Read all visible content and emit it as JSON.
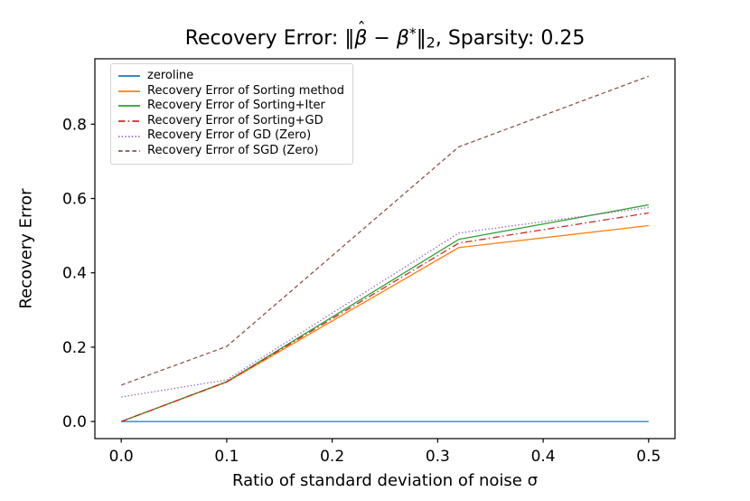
{
  "title_parts": {
    "prefix": "Recovery Error: ",
    "norm_open": "‖",
    "beta": "β",
    "hat": "ˆ",
    "minus": " − ",
    "beta2": "β",
    "star": "*",
    "norm_close": "‖",
    "subscript": "2",
    "suffix": ", Sparsity: 0.25"
  },
  "chart_data": {
    "type": "line",
    "title": "Recovery Error: ‖β̂ − β*‖₂, Sparsity: 0.25",
    "xlabel": "Ratio of standard deviation of noise σ",
    "ylabel": "Recovery Error",
    "x": [
      0.0,
      0.1,
      0.32,
      0.5
    ],
    "series": [
      {
        "name": "zeroline",
        "color": "#1f77b4",
        "style": "solid",
        "values": [
          0.0,
          0.0,
          0.0,
          0.0
        ]
      },
      {
        "name": "Recovery Error of Sorting method",
        "color": "#ff7f0e",
        "style": "solid",
        "values": [
          0.0,
          0.106,
          0.468,
          0.527
        ]
      },
      {
        "name": "Recovery Error of Sorting+Iter",
        "color": "#2ca02c",
        "style": "solid",
        "values": [
          0.0,
          0.107,
          0.49,
          0.583
        ]
      },
      {
        "name": "Recovery Error of Sorting+GD",
        "color": "#d62728",
        "style": "dashdot",
        "values": [
          0.0,
          0.107,
          0.48,
          0.561
        ]
      },
      {
        "name": "Recovery Error of GD (Zero)",
        "color": "#9467bd",
        "style": "dotted",
        "values": [
          0.066,
          0.112,
          0.507,
          0.576
        ]
      },
      {
        "name": "Recovery Error of SGD (Zero)",
        "color": "#8c564b",
        "style": "dashed",
        "values": [
          0.098,
          0.202,
          0.739,
          0.929
        ]
      }
    ],
    "xticks": [
      0.0,
      0.1,
      0.2,
      0.3,
      0.4,
      0.5
    ],
    "yticks": [
      0.0,
      0.2,
      0.4,
      0.6,
      0.8
    ],
    "xlim": [
      -0.025,
      0.525
    ],
    "ylim": [
      -0.046,
      0.976
    ],
    "grid": false,
    "legend_position": "upper left"
  }
}
